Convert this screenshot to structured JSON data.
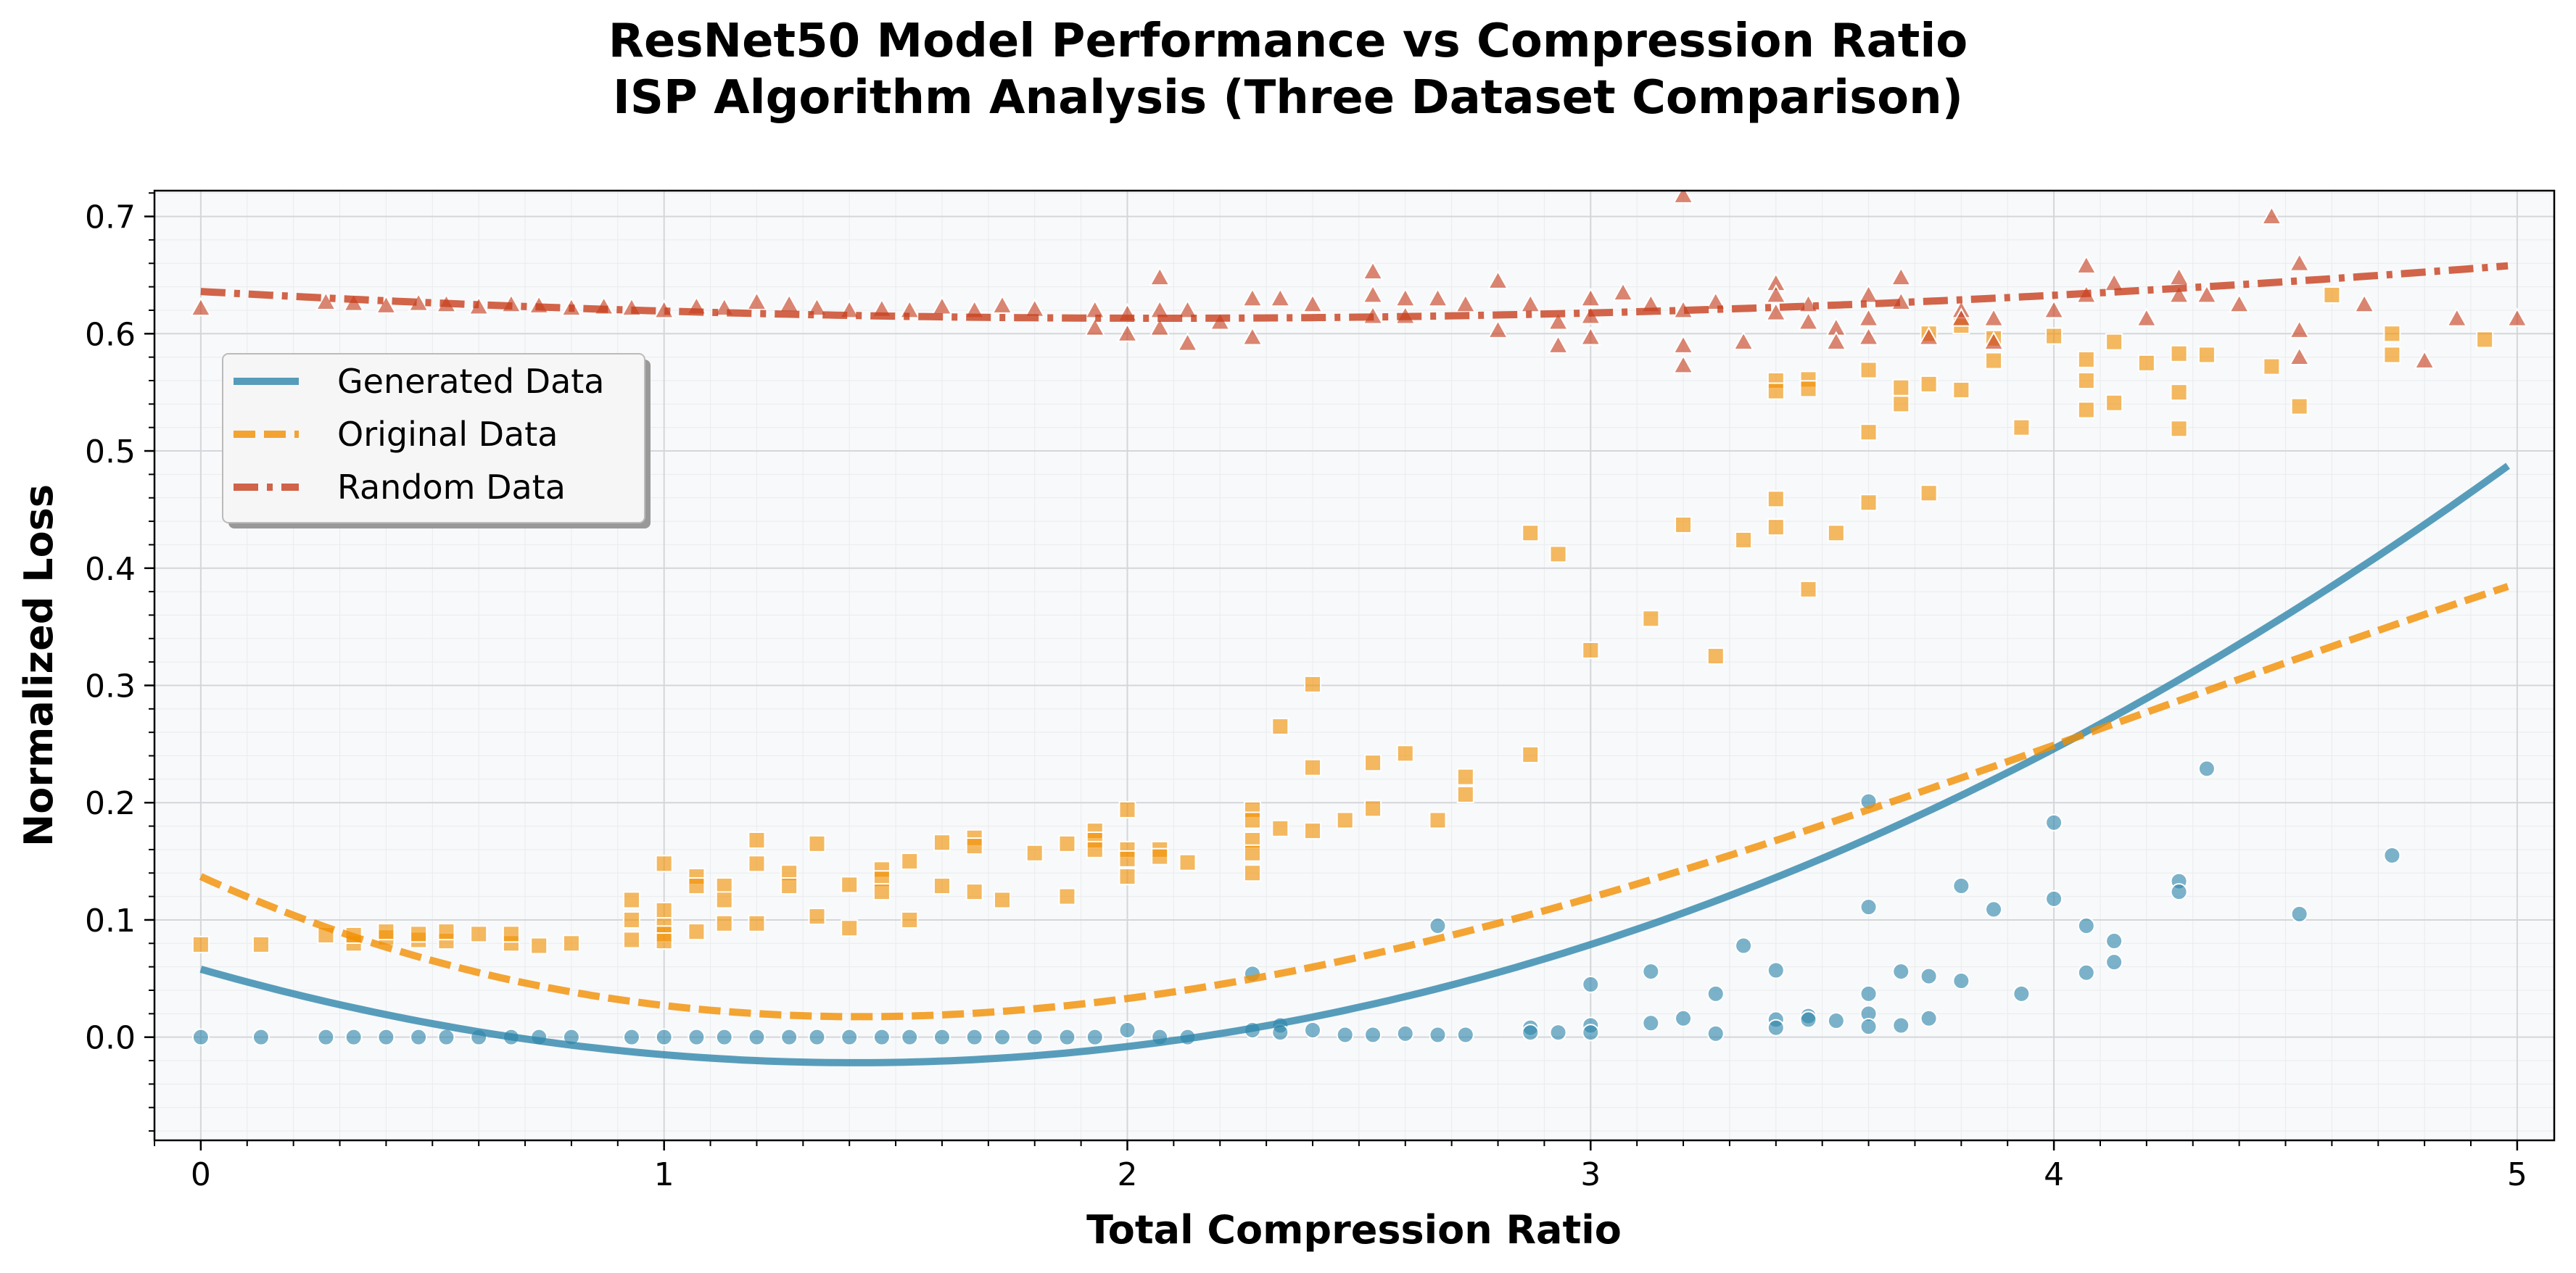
{
  "chart_data": {
    "type": "scatter",
    "title_line1": "ResNet50 Model Performance vs Compression Ratio",
    "title_line2": "ISP Algorithm Analysis (Three Dataset Comparison)",
    "xlabel": "Total Compression Ratio",
    "ylabel": "Normalized Loss",
    "xlim": [
      -0.1,
      5.08
    ],
    "ylim": [
      -0.088,
      0.722
    ],
    "xticks": [
      0,
      1,
      2,
      3,
      4,
      5
    ],
    "yticks": [
      0.0,
      0.1,
      0.2,
      0.3,
      0.4,
      0.5,
      0.6,
      0.7
    ],
    "grid": true,
    "legend_position": "upper-left",
    "series": [
      {
        "name": "Generated Data",
        "color": "#2E86AB",
        "marker": "circle",
        "line_style": "solid",
        "fit_coefficients": [
          0.058,
          -0.113,
          0.04
        ],
        "points": [
          [
            0,
            0
          ],
          [
            0.13,
            0
          ],
          [
            0.27,
            0
          ],
          [
            0.33,
            0
          ],
          [
            0.4,
            0
          ],
          [
            0.47,
            0
          ],
          [
            0.53,
            0
          ],
          [
            0.6,
            0
          ],
          [
            0.67,
            0
          ],
          [
            0.73,
            0
          ],
          [
            0.8,
            0
          ],
          [
            0.93,
            0
          ],
          [
            1.0,
            0
          ],
          [
            1.07,
            0
          ],
          [
            1.13,
            0
          ],
          [
            1.2,
            0
          ],
          [
            1.27,
            0
          ],
          [
            1.33,
            0
          ],
          [
            1.4,
            0
          ],
          [
            1.47,
            0
          ],
          [
            1.53,
            0
          ],
          [
            1.6,
            0
          ],
          [
            1.67,
            0
          ],
          [
            1.73,
            0
          ],
          [
            1.8,
            0
          ],
          [
            1.87,
            0
          ],
          [
            1.93,
            0
          ],
          [
            2.0,
            0.006
          ],
          [
            2.07,
            0
          ],
          [
            2.13,
            0
          ],
          [
            2.27,
            0.054
          ],
          [
            2.27,
            0.006
          ],
          [
            2.33,
            0.01
          ],
          [
            2.33,
            0.004
          ],
          [
            2.4,
            0.006
          ],
          [
            2.47,
            0.002
          ],
          [
            2.53,
            0.002
          ],
          [
            2.6,
            0.003
          ],
          [
            2.67,
            0.095
          ],
          [
            2.67,
            0.002
          ],
          [
            2.73,
            0.002
          ],
          [
            2.87,
            0.008
          ],
          [
            2.87,
            0.004
          ],
          [
            2.93,
            0.004
          ],
          [
            3.0,
            0.045
          ],
          [
            3.0,
            0.01
          ],
          [
            3.0,
            0.004
          ],
          [
            3.13,
            0.056
          ],
          [
            3.13,
            0.012
          ],
          [
            3.2,
            0.016
          ],
          [
            3.27,
            0.037
          ],
          [
            3.27,
            0.003
          ],
          [
            3.33,
            0.078
          ],
          [
            3.4,
            0.057
          ],
          [
            3.4,
            0.015
          ],
          [
            3.4,
            0.008
          ],
          [
            3.47,
            0.018
          ],
          [
            3.47,
            0.015
          ],
          [
            3.53,
            0.014
          ],
          [
            3.6,
            0.201
          ],
          [
            3.6,
            0.111
          ],
          [
            3.6,
            0.037
          ],
          [
            3.6,
            0.02
          ],
          [
            3.6,
            0.009
          ],
          [
            3.67,
            0.056
          ],
          [
            3.67,
            0.01
          ],
          [
            3.73,
            0.052
          ],
          [
            3.73,
            0.016
          ],
          [
            3.8,
            0.129
          ],
          [
            3.8,
            0.048
          ],
          [
            3.87,
            0.109
          ],
          [
            3.93,
            0.037
          ],
          [
            4.0,
            0.183
          ],
          [
            4.0,
            0.118
          ],
          [
            4.07,
            0.095
          ],
          [
            4.07,
            0.055
          ],
          [
            4.13,
            0.082
          ],
          [
            4.13,
            0.064
          ],
          [
            4.27,
            0.133
          ],
          [
            4.27,
            0.124
          ],
          [
            4.33,
            0.229
          ],
          [
            4.53,
            0.105
          ],
          [
            4.73,
            0.155
          ]
        ]
      },
      {
        "name": "Original Data",
        "color": "#F18F01",
        "marker": "square",
        "line_style": "dashed",
        "fit_coefficients": [
          0.137,
          -0.18,
          0.076,
          -0.006
        ],
        "points": [
          [
            0,
            0.079
          ],
          [
            0.13,
            0.079
          ],
          [
            0.27,
            0.087
          ],
          [
            0.33,
            0.08
          ],
          [
            0.33,
            0.087
          ],
          [
            0.4,
            0.085
          ],
          [
            0.4,
            0.09
          ],
          [
            0.47,
            0.083
          ],
          [
            0.47,
            0.088
          ],
          [
            0.53,
            0.082
          ],
          [
            0.53,
            0.09
          ],
          [
            0.6,
            0.088
          ],
          [
            0.67,
            0.08
          ],
          [
            0.67,
            0.088
          ],
          [
            0.73,
            0.078
          ],
          [
            0.8,
            0.08
          ],
          [
            0.93,
            0.083
          ],
          [
            0.93,
            0.1
          ],
          [
            0.93,
            0.117
          ],
          [
            1.0,
            0.148
          ],
          [
            1.0,
            0.108
          ],
          [
            1.0,
            0.095
          ],
          [
            1.0,
            0.088
          ],
          [
            1.0,
            0.082
          ],
          [
            1.07,
            0.137
          ],
          [
            1.07,
            0.129
          ],
          [
            1.07,
            0.09
          ],
          [
            1.13,
            0.129
          ],
          [
            1.13,
            0.117
          ],
          [
            1.13,
            0.097
          ],
          [
            1.2,
            0.168
          ],
          [
            1.2,
            0.148
          ],
          [
            1.2,
            0.097
          ],
          [
            1.27,
            0.14
          ],
          [
            1.27,
            0.129
          ],
          [
            1.33,
            0.165
          ],
          [
            1.33,
            0.103
          ],
          [
            1.4,
            0.13
          ],
          [
            1.4,
            0.093
          ],
          [
            1.47,
            0.143
          ],
          [
            1.47,
            0.135
          ],
          [
            1.47,
            0.124
          ],
          [
            1.53,
            0.15
          ],
          [
            1.53,
            0.1
          ],
          [
            1.6,
            0.166
          ],
          [
            1.6,
            0.129
          ],
          [
            1.67,
            0.17
          ],
          [
            1.67,
            0.163
          ],
          [
            1.67,
            0.124
          ],
          [
            1.73,
            0.117
          ],
          [
            1.8,
            0.157
          ],
          [
            1.87,
            0.165
          ],
          [
            1.87,
            0.12
          ],
          [
            1.93,
            0.176
          ],
          [
            1.93,
            0.168
          ],
          [
            1.93,
            0.16
          ],
          [
            2.0,
            0.194
          ],
          [
            2.0,
            0.16
          ],
          [
            2.0,
            0.152
          ],
          [
            2.0,
            0.137
          ],
          [
            2.07,
            0.16
          ],
          [
            2.07,
            0.154
          ],
          [
            2.13,
            0.149
          ],
          [
            2.27,
            0.194
          ],
          [
            2.27,
            0.185
          ],
          [
            2.27,
            0.168
          ],
          [
            2.27,
            0.157
          ],
          [
            2.27,
            0.14
          ],
          [
            2.33,
            0.265
          ],
          [
            2.33,
            0.178
          ],
          [
            2.4,
            0.301
          ],
          [
            2.4,
            0.23
          ],
          [
            2.4,
            0.176
          ],
          [
            2.47,
            0.185
          ],
          [
            2.53,
            0.234
          ],
          [
            2.53,
            0.195
          ],
          [
            2.6,
            0.242
          ],
          [
            2.67,
            0.185
          ],
          [
            2.73,
            0.222
          ],
          [
            2.73,
            0.207
          ],
          [
            2.87,
            0.43
          ],
          [
            2.87,
            0.241
          ],
          [
            2.93,
            0.412
          ],
          [
            3.0,
            0.33
          ],
          [
            3.13,
            0.357
          ],
          [
            3.2,
            0.437
          ],
          [
            3.27,
            0.325
          ],
          [
            3.33,
            0.424
          ],
          [
            3.4,
            0.56
          ],
          [
            3.4,
            0.551
          ],
          [
            3.4,
            0.459
          ],
          [
            3.4,
            0.435
          ],
          [
            3.47,
            0.561
          ],
          [
            3.47,
            0.553
          ],
          [
            3.47,
            0.382
          ],
          [
            3.53,
            0.43
          ],
          [
            3.6,
            0.569
          ],
          [
            3.6,
            0.516
          ],
          [
            3.6,
            0.456
          ],
          [
            3.67,
            0.554
          ],
          [
            3.67,
            0.54
          ],
          [
            3.73,
            0.6
          ],
          [
            3.73,
            0.557
          ],
          [
            3.73,
            0.464
          ],
          [
            3.8,
            0.607
          ],
          [
            3.8,
            0.552
          ],
          [
            3.87,
            0.596
          ],
          [
            3.87,
            0.577
          ],
          [
            3.93,
            0.52
          ],
          [
            4.0,
            0.598
          ],
          [
            4.07,
            0.578
          ],
          [
            4.07,
            0.56
          ],
          [
            4.07,
            0.535
          ],
          [
            4.13,
            0.593
          ],
          [
            4.13,
            0.541
          ],
          [
            4.2,
            0.575
          ],
          [
            4.27,
            0.583
          ],
          [
            4.27,
            0.55
          ],
          [
            4.27,
            0.519
          ],
          [
            4.33,
            0.582
          ],
          [
            4.47,
            0.572
          ],
          [
            4.53,
            0.538
          ],
          [
            4.6,
            0.633
          ],
          [
            4.73,
            0.6
          ],
          [
            4.73,
            0.582
          ],
          [
            4.93,
            0.595
          ]
        ]
      },
      {
        "name": "Random Data",
        "color": "#C73E1D",
        "marker": "triangle",
        "line_style": "dashdot",
        "fit_coefficients": [
          0.636,
          -0.022,
          0.0053
        ],
        "points": [
          [
            0,
            0.622
          ],
          [
            0.27,
            0.627
          ],
          [
            0.33,
            0.626
          ],
          [
            0.4,
            0.624
          ],
          [
            0.47,
            0.626
          ],
          [
            0.53,
            0.625
          ],
          [
            0.6,
            0.623
          ],
          [
            0.67,
            0.625
          ],
          [
            0.73,
            0.624
          ],
          [
            0.8,
            0.622
          ],
          [
            0.87,
            0.623
          ],
          [
            0.93,
            0.622
          ],
          [
            1.0,
            0.62
          ],
          [
            1.07,
            0.623
          ],
          [
            1.13,
            0.622
          ],
          [
            1.2,
            0.627
          ],
          [
            1.27,
            0.625
          ],
          [
            1.33,
            0.622
          ],
          [
            1.4,
            0.62
          ],
          [
            1.47,
            0.621
          ],
          [
            1.53,
            0.62
          ],
          [
            1.6,
            0.623
          ],
          [
            1.67,
            0.62
          ],
          [
            1.73,
            0.624
          ],
          [
            1.8,
            0.621
          ],
          [
            1.93,
            0.62
          ],
          [
            1.93,
            0.605
          ],
          [
            2.0,
            0.617
          ],
          [
            2.0,
            0.6
          ],
          [
            2.07,
            0.648
          ],
          [
            2.07,
            0.62
          ],
          [
            2.07,
            0.605
          ],
          [
            2.13,
            0.62
          ],
          [
            2.13,
            0.592
          ],
          [
            2.2,
            0.61
          ],
          [
            2.27,
            0.63
          ],
          [
            2.27,
            0.597
          ],
          [
            2.33,
            0.63
          ],
          [
            2.4,
            0.625
          ],
          [
            2.53,
            0.653
          ],
          [
            2.53,
            0.633
          ],
          [
            2.53,
            0.615
          ],
          [
            2.6,
            0.63
          ],
          [
            2.6,
            0.615
          ],
          [
            2.67,
            0.63
          ],
          [
            2.73,
            0.625
          ],
          [
            2.8,
            0.645
          ],
          [
            2.8,
            0.603
          ],
          [
            2.87,
            0.625
          ],
          [
            2.93,
            0.61
          ],
          [
            2.93,
            0.59
          ],
          [
            3.0,
            0.63
          ],
          [
            3.0,
            0.615
          ],
          [
            3.0,
            0.597
          ],
          [
            3.07,
            0.635
          ],
          [
            3.13,
            0.625
          ],
          [
            3.2,
            0.718
          ],
          [
            3.2,
            0.62
          ],
          [
            3.2,
            0.59
          ],
          [
            3.2,
            0.573
          ],
          [
            3.27,
            0.627
          ],
          [
            3.33,
            0.593
          ],
          [
            3.4,
            0.643
          ],
          [
            3.4,
            0.633
          ],
          [
            3.4,
            0.618
          ],
          [
            3.47,
            0.625
          ],
          [
            3.47,
            0.61
          ],
          [
            3.53,
            0.605
          ],
          [
            3.53,
            0.593
          ],
          [
            3.6,
            0.633
          ],
          [
            3.6,
            0.613
          ],
          [
            3.6,
            0.597
          ],
          [
            3.67,
            0.648
          ],
          [
            3.67,
            0.627
          ],
          [
            3.73,
            0.597
          ],
          [
            3.8,
            0.62
          ],
          [
            3.8,
            0.613
          ],
          [
            3.87,
            0.613
          ],
          [
            3.87,
            0.593
          ],
          [
            4.0,
            0.62
          ],
          [
            4.07,
            0.658
          ],
          [
            4.07,
            0.633
          ],
          [
            4.13,
            0.643
          ],
          [
            4.2,
            0.613
          ],
          [
            4.27,
            0.648
          ],
          [
            4.27,
            0.633
          ],
          [
            4.33,
            0.633
          ],
          [
            4.4,
            0.625
          ],
          [
            4.47,
            0.7
          ],
          [
            4.53,
            0.66
          ],
          [
            4.53,
            0.603
          ],
          [
            4.53,
            0.58
          ],
          [
            4.67,
            0.625
          ],
          [
            4.8,
            0.577
          ],
          [
            4.87,
            0.613
          ],
          [
            5.0,
            0.613
          ]
        ]
      }
    ]
  }
}
